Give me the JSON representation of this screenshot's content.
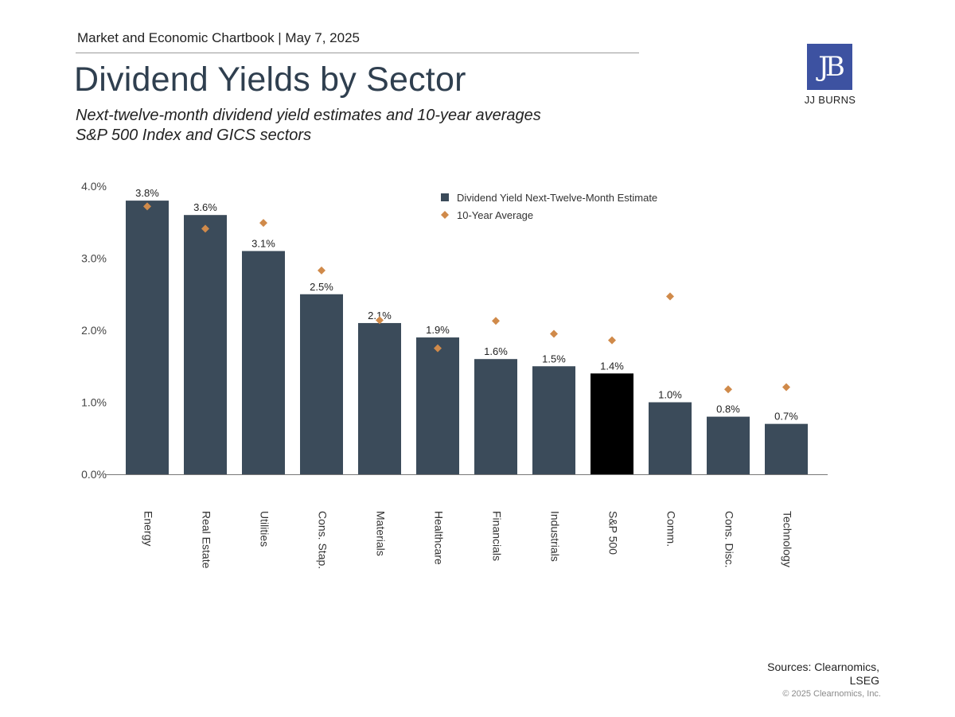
{
  "header": {
    "publication": "Market and Economic Chartbook | May 7, 2025",
    "title": "Dividend Yields by Sector",
    "subtitle_line1": "Next-twelve-month dividend yield estimates and 10-year averages",
    "subtitle_line2": "S&P 500 Index and GICS sectors"
  },
  "logo": {
    "mark": "JB",
    "name": "JJ BURNS"
  },
  "footer": {
    "sources_line1": "Sources: Clearnomics,",
    "sources_line2": "LSEG",
    "copyright": "© 2025 Clearnomics, Inc."
  },
  "colors": {
    "bar": "#3b4b5a",
    "highlight_bar": "#000000",
    "marker": "#d08a4a",
    "logo_bg": "#3d52a1"
  },
  "chart_data": {
    "type": "bar",
    "categories": [
      "Energy",
      "Real Estate",
      "Utilities",
      "Cons. Stap.",
      "Materials",
      "Healthcare",
      "Financials",
      "Industrials",
      "S&P 500",
      "Comm.",
      "Cons. Disc.",
      "Technology"
    ],
    "series": [
      {
        "name": "Dividend Yield Next-Twelve-Month Estimate",
        "type": "bar",
        "values": [
          3.8,
          3.6,
          3.1,
          2.5,
          2.1,
          1.9,
          1.6,
          1.5,
          1.4,
          1.0,
          0.8,
          0.7
        ],
        "labels": [
          "3.8%",
          "3.6%",
          "3.1%",
          "2.5%",
          "2.1%",
          "1.9%",
          "1.6%",
          "1.5%",
          "1.4%",
          "1.0%",
          "0.8%",
          "0.7%"
        ]
      },
      {
        "name": "10-Year Average",
        "type": "scatter",
        "marker": "diamond",
        "values": [
          3.72,
          3.41,
          3.49,
          2.83,
          2.14,
          1.75,
          2.13,
          1.95,
          1.86,
          2.47,
          1.18,
          1.21
        ]
      }
    ],
    "highlight_category": "S&P 500",
    "yticks": [
      "0.0%",
      "1.0%",
      "2.0%",
      "3.0%",
      "4.0%"
    ],
    "ylim": [
      0,
      4
    ],
    "grid": false,
    "legend": "top-right"
  }
}
